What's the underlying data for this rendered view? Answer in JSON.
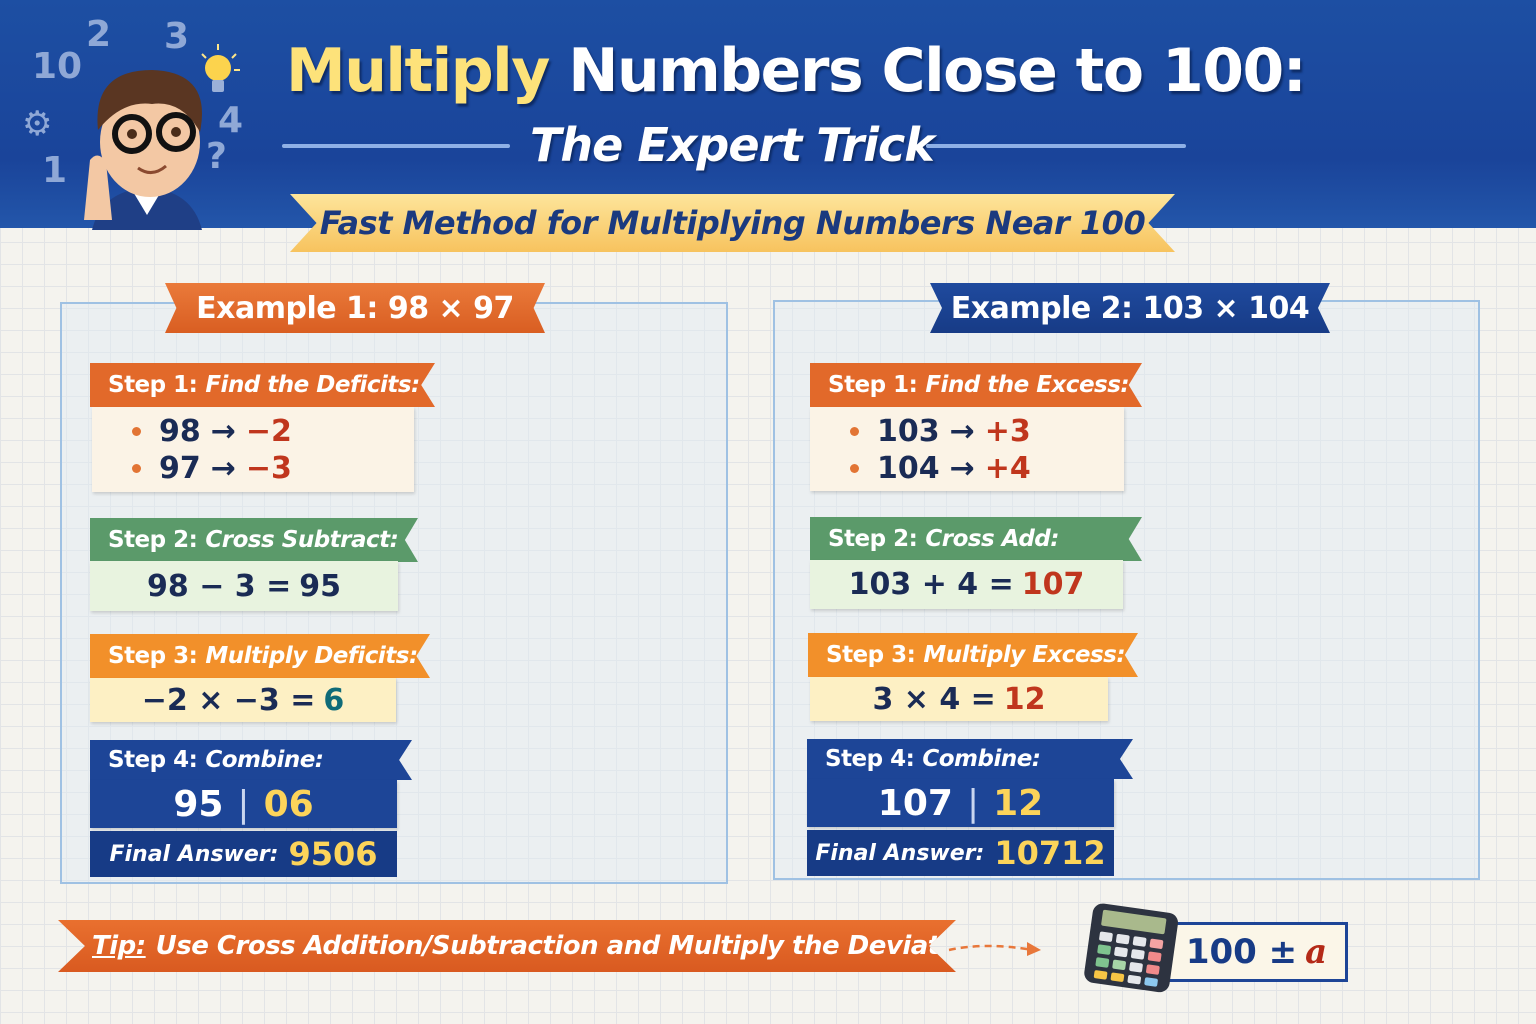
{
  "header": {
    "title_highlight": "Multiply",
    "title_rest": "Numbers Close to 100:",
    "subtitle": "The Expert Trick",
    "banner": "Fast Method for Multiplying Numbers Near 100",
    "decor_numbers": [
      "10",
      "2",
      "3",
      "4",
      "1",
      "?"
    ]
  },
  "colors": {
    "navy": "#1d4597",
    "orange": "#e2692a",
    "green": "#5b9a6a",
    "amber": "#f2902a",
    "gold": "#fcd45a",
    "red": "#c0361d",
    "teal": "#0f6b78"
  },
  "examples": [
    {
      "title": "Example 1: 98 × 97",
      "step1": {
        "num": "Step 1:",
        "label": "Find the Deficits:",
        "lines": [
          {
            "n": "98",
            "arrow": "→",
            "d": "−2"
          },
          {
            "n": "97",
            "arrow": "→",
            "d": "−3"
          }
        ]
      },
      "step2": {
        "num": "Step 2:",
        "label": "Cross Subtract:",
        "expr": "98 − 3 =",
        "result": "95"
      },
      "step3": {
        "num": "Step 3:",
        "label": "Multiply Deficits:",
        "expr": "−2 × −3 =",
        "result": "6"
      },
      "step4": {
        "num": "Step 4:",
        "label": "Combine:",
        "left": "95",
        "sep": "|",
        "right": "06",
        "final_label": "Final Answer:",
        "final": "9506"
      }
    },
    {
      "title": "Example 2: 103 × 104",
      "step1": {
        "num": "Step 1:",
        "label": "Find the Excess:",
        "lines": [
          {
            "n": "103",
            "arrow": "→",
            "d": "+3"
          },
          {
            "n": "104",
            "arrow": "→",
            "d": "+4"
          }
        ]
      },
      "step2": {
        "num": "Step 2:",
        "label": "Cross Add:",
        "expr": "103 + 4 =",
        "result": "107"
      },
      "step3": {
        "num": "Step 3:",
        "label": "Multiply Excess:",
        "expr": "3 × 4 =",
        "result": "12"
      },
      "step4": {
        "num": "Step 4:",
        "label": "Combine:",
        "left": "107",
        "sep": "|",
        "right": "12",
        "final_label": "Final Answer:",
        "final": "10712"
      }
    }
  ],
  "tip": {
    "label": "Tip:",
    "text": "Use Cross Addition/Subtraction and Multiply the Deviations"
  },
  "formula": {
    "base": "100 ±",
    "var": "a"
  }
}
